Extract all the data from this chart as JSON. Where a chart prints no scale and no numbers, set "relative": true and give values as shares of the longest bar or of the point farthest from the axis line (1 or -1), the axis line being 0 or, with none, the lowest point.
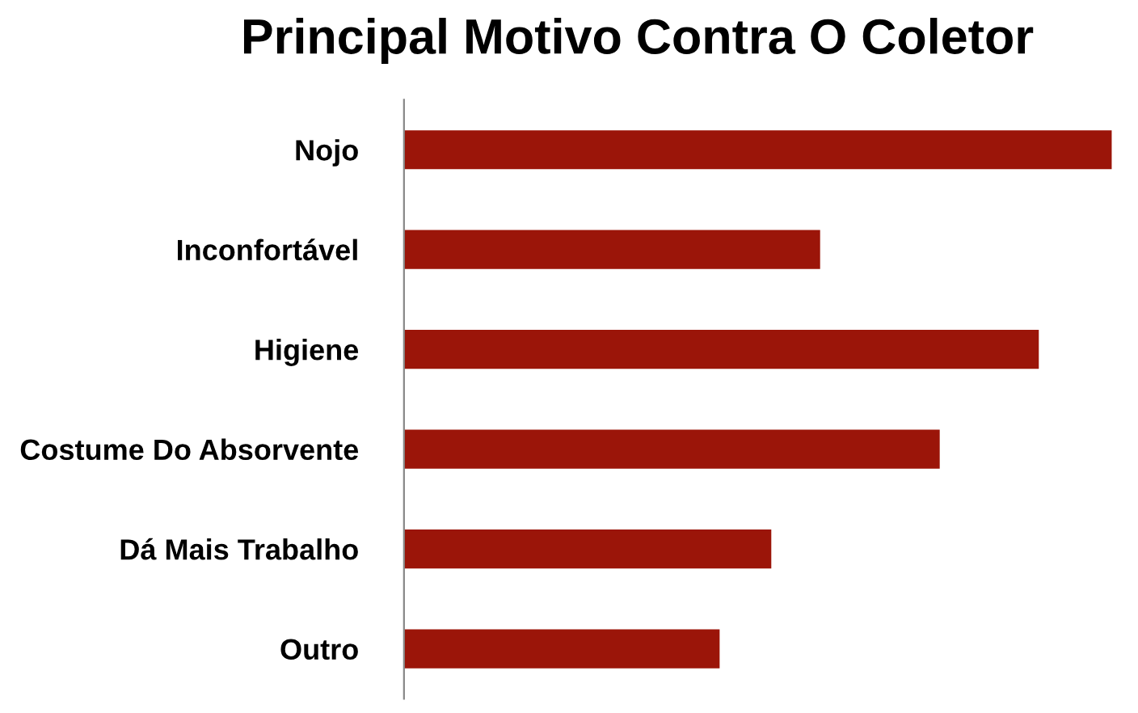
{
  "chart_data": {
    "type": "bar",
    "orientation": "horizontal",
    "relative": true,
    "title": "Principal Motivo Contra O Coletor",
    "categories": [
      "Nojo",
      "Inconfortável",
      "Higiene",
      "Costume Do Absorvente",
      "Dá Mais Trabalho",
      "Outro"
    ],
    "values": [
      1,
      0.588,
      0.897,
      0.757,
      0.519,
      0.446
    ],
    "color": "#9b1509",
    "grid": false,
    "legend": false
  }
}
